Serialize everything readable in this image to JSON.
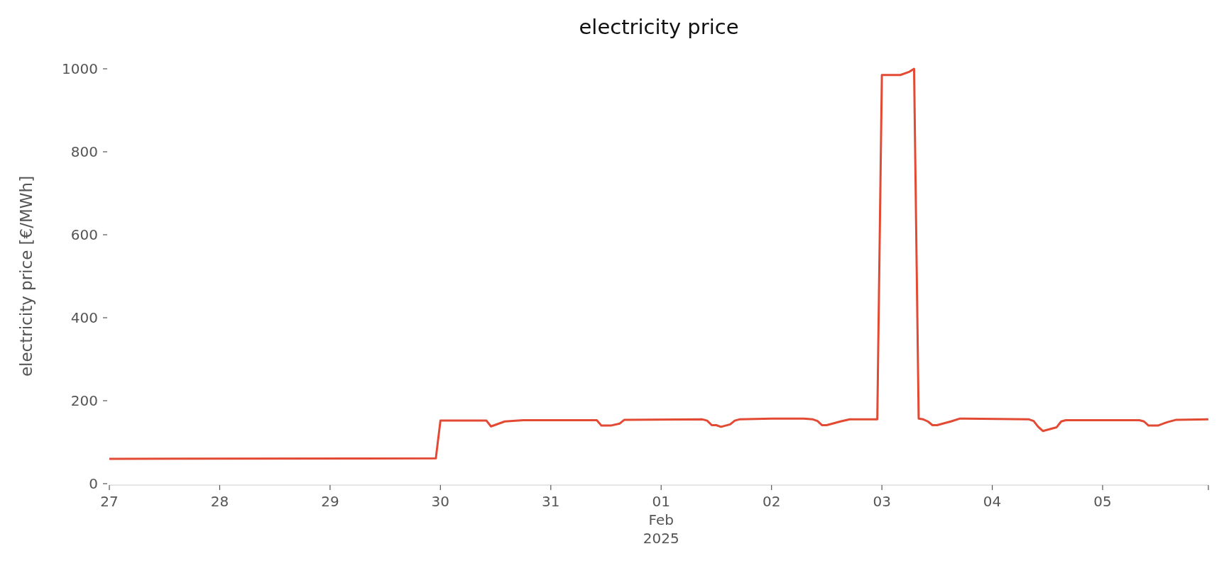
{
  "chart_data": {
    "type": "line",
    "title": "electricity price",
    "ylabel": "electricity price [€/MWh]",
    "x": [
      "2025-01-27T00:00",
      "2025-01-29T23:00",
      "2025-01-30T00:00",
      "2025-01-30T10:00",
      "2025-01-30T11:00",
      "2025-01-30T14:00",
      "2025-01-30T18:00",
      "2025-01-31T10:00",
      "2025-01-31T11:00",
      "2025-01-31T13:00",
      "2025-01-31T15:00",
      "2025-01-31T16:00",
      "2025-02-01T09:00",
      "2025-02-01T10:00",
      "2025-02-01T11:00",
      "2025-02-01T12:00",
      "2025-02-01T13:00",
      "2025-02-01T15:00",
      "2025-02-01T16:00",
      "2025-02-01T17:00",
      "2025-02-02T00:00",
      "2025-02-02T07:00",
      "2025-02-02T09:00",
      "2025-02-02T10:00",
      "2025-02-02T11:00",
      "2025-02-02T12:00",
      "2025-02-02T15:00",
      "2025-02-02T17:00",
      "2025-02-02T23:00",
      "2025-02-03T00:00",
      "2025-02-03T04:00",
      "2025-02-03T06:00",
      "2025-02-03T07:00",
      "2025-02-03T08:00",
      "2025-02-03T09:00",
      "2025-02-03T10:00",
      "2025-02-03T11:00",
      "2025-02-03T12:00",
      "2025-02-03T15:00",
      "2025-02-03T17:00",
      "2025-02-03T18:00",
      "2025-02-04T08:00",
      "2025-02-04T09:00",
      "2025-02-04T10:00",
      "2025-02-04T11:00",
      "2025-02-04T14:00",
      "2025-02-04T15:00",
      "2025-02-04T16:00",
      "2025-02-05T08:00",
      "2025-02-05T09:00",
      "2025-02-05T10:00",
      "2025-02-05T12:00",
      "2025-02-05T14:00",
      "2025-02-05T16:00",
      "2025-02-05T23:00"
    ],
    "series": [
      {
        "color": "#e24a33",
        "values": [
          60,
          61,
          152,
          152,
          138,
          150,
          153,
          153,
          140,
          140,
          145,
          154,
          155,
          152,
          141,
          141,
          137,
          143,
          152,
          155,
          157,
          157,
          155,
          151,
          141,
          141,
          150,
          155,
          155,
          985,
          985,
          993,
          1000,
          157,
          155,
          150,
          141,
          141,
          150,
          157,
          157,
          155,
          151,
          137,
          127,
          136,
          150,
          153,
          153,
          150,
          140,
          140,
          148,
          154,
          155
        ]
      }
    ],
    "xlim": [
      "2025-01-27T00:00",
      "2025-02-05T23:00"
    ],
    "xticks": [
      {
        "value": "2025-01-27",
        "label": "27"
      },
      {
        "value": "2025-01-28",
        "label": "28"
      },
      {
        "value": "2025-01-29",
        "label": "29"
      },
      {
        "value": "2025-01-30",
        "label": "30"
      },
      {
        "value": "2025-01-31",
        "label": "31"
      },
      {
        "value": "2025-02-01",
        "label": "01\nFeb\n2025"
      },
      {
        "value": "2025-02-02",
        "label": "02"
      },
      {
        "value": "2025-02-03",
        "label": "03"
      },
      {
        "value": "2025-02-04",
        "label": "04"
      },
      {
        "value": "2025-02-05",
        "label": "05"
      },
      {
        "value": "2025-02-05T23:00",
        "label": null
      }
    ],
    "ylim": [
      0,
      1000
    ],
    "yticks": [
      0,
      200,
      400,
      600,
      800,
      1000
    ],
    "grid": false,
    "legend": false
  }
}
